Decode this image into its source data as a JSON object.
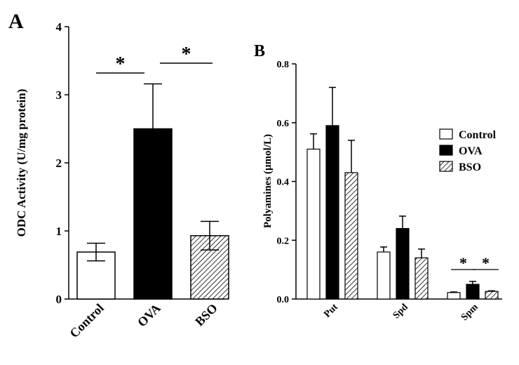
{
  "chart_data": [
    {
      "panel": "A",
      "type": "bar",
      "categories": [
        "Control",
        "OVA",
        "BSO"
      ],
      "values": [
        0.69,
        2.5,
        0.93
      ],
      "errors": [
        0.13,
        0.66,
        0.21
      ],
      "fills": [
        "white",
        "black",
        "hatched"
      ],
      "ylabel": "ODC Activity (U/mg protein)",
      "xlabel": "",
      "ylim": [
        0,
        4
      ],
      "yticks": [
        "0",
        "1",
        "2",
        "3",
        "4"
      ],
      "significance": [
        {
          "from": "Control",
          "to": "OVA",
          "label": "*"
        },
        {
          "from": "OVA",
          "to": "BSO",
          "label": "*"
        }
      ]
    },
    {
      "panel": "B",
      "type": "bar",
      "categories": [
        "Put",
        "Spd",
        "Spm"
      ],
      "series": [
        {
          "name": "Control",
          "fill": "white",
          "values": [
            0.51,
            0.16,
            0.022
          ],
          "errors": [
            0.052,
            0.017,
            0.002
          ]
        },
        {
          "name": "OVA",
          "fill": "black",
          "values": [
            0.59,
            0.24,
            0.05
          ],
          "errors": [
            0.13,
            0.042,
            0.01
          ]
        },
        {
          "name": "BSO",
          "fill": "hatched",
          "values": [
            0.43,
            0.14,
            0.026
          ],
          "errors": [
            0.11,
            0.03,
            0.002
          ]
        }
      ],
      "ylabel": "Polyamines (µmol/L)",
      "xlabel": "",
      "ylim": [
        0,
        0.8
      ],
      "yticks": [
        "0.0",
        "0.2",
        "0.4",
        "0.6",
        "0.8"
      ],
      "legend_position": "right",
      "significance": [
        {
          "category": "Spm",
          "from": "Control",
          "to": "OVA",
          "label": "*"
        },
        {
          "category": "Spm",
          "from": "OVA",
          "to": "BSO",
          "label": "*"
        }
      ]
    }
  ]
}
